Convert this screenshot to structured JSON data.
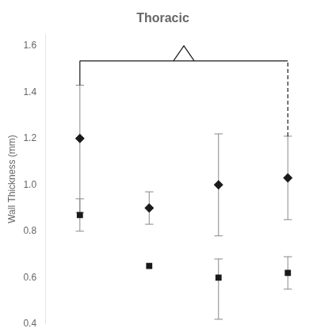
{
  "chart_data": {
    "type": "scatter",
    "title": "Thoracic",
    "ylabel": "Wall Thickness (mm)",
    "categories": [
      null,
      null,
      null,
      null
    ],
    "series": [
      {
        "marker": "diamond",
        "color": "#1a1a1a",
        "values": [
          1.2,
          0.9,
          1.0,
          1.03
        ],
        "yerr_low": [
          0.32,
          0.07,
          0.22,
          0.18
        ],
        "yerr_high": [
          0.23,
          0.07,
          0.22,
          0.18
        ]
      },
      {
        "marker": "square",
        "color": "#1a1a1a",
        "values": [
          0.87,
          0.65,
          0.6,
          0.62
        ],
        "yerr_low": [
          0.07,
          0.0,
          0.18,
          0.07
        ],
        "yerr_high": [
          0.07,
          0.0,
          0.08,
          0.07
        ]
      }
    ],
    "ylim": [
      0.4,
      1.65
    ],
    "yticks": [
      0.4,
      0.6,
      0.8,
      {
        "value": 1.0,
        "label": "1.0"
      },
      1.2,
      1.4,
      1.6
    ],
    "grid": false,
    "tick_labels": "y",
    "annotations": [
      {
        "type": "bracket",
        "from": 0,
        "to": 3,
        "y": 1.535,
        "notch_y": 1.6,
        "color": "#1a1a1a",
        "left_line_style": "solid",
        "right_line_style": "dashed"
      }
    ]
  }
}
